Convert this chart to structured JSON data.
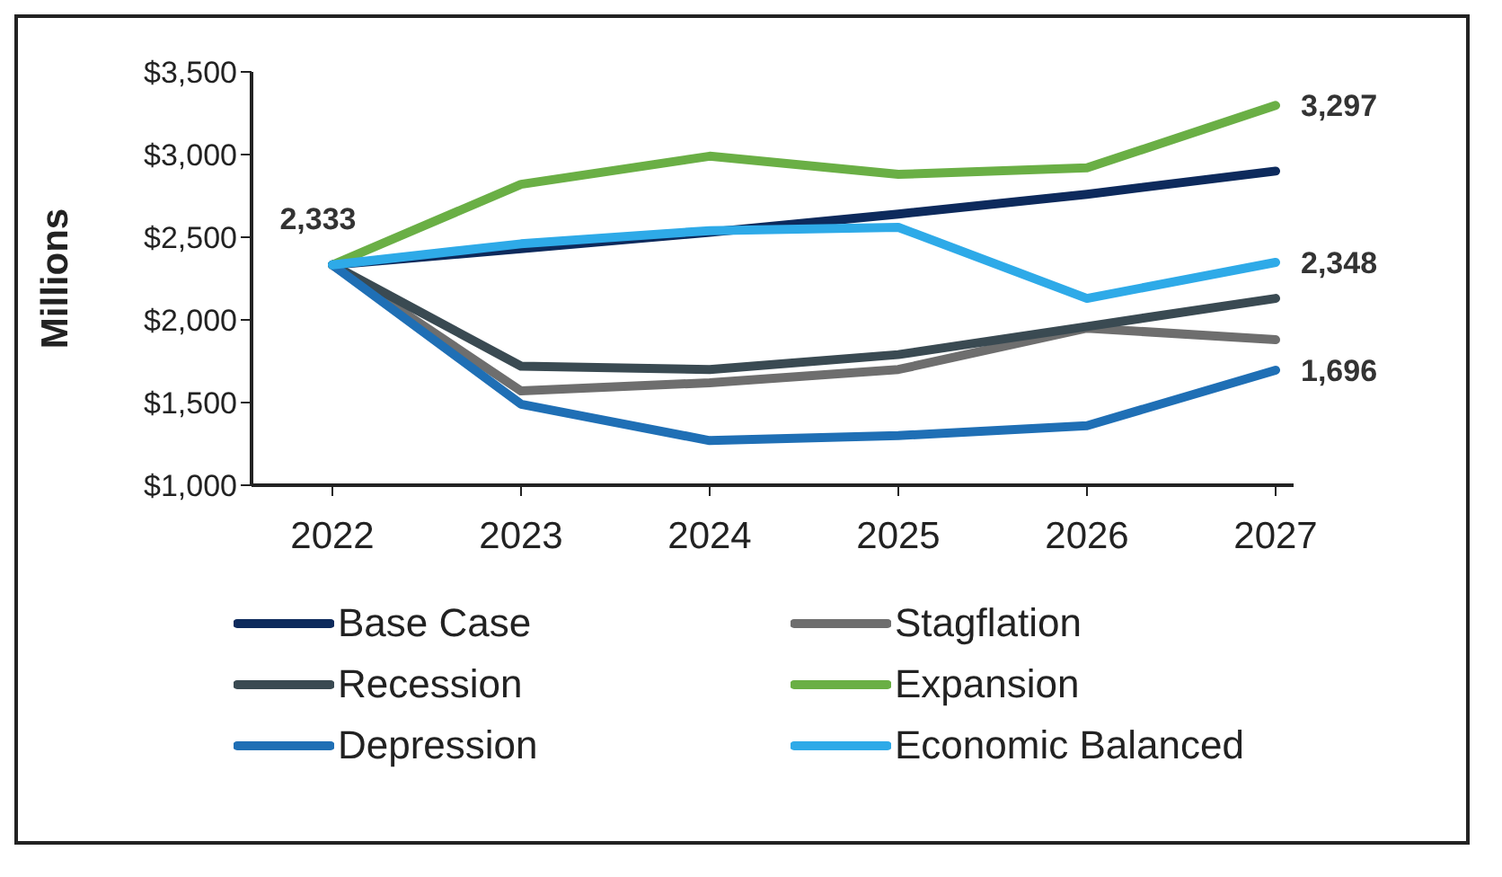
{
  "chart_data": {
    "type": "line",
    "ylabel": "Millions",
    "categories": [
      "2022",
      "2023",
      "2024",
      "2025",
      "2026",
      "2027"
    ],
    "ylim": [
      1000,
      3500
    ],
    "yticks": [
      {
        "value": 1000,
        "label": "$1,000"
      },
      {
        "value": 1500,
        "label": "$1,500"
      },
      {
        "value": 2000,
        "label": "$2,000"
      },
      {
        "value": 2500,
        "label": "$2,500"
      },
      {
        "value": 3000,
        "label": "$3,000"
      },
      {
        "value": 3500,
        "label": "$3,500"
      }
    ],
    "grid": false,
    "legend": "bottom",
    "marker": "none",
    "line_style": "solid",
    "series": [
      {
        "name": "Base Case",
        "color": "#0d2a5c",
        "values": [
          2333,
          2430,
          2530,
          2640,
          2760,
          2900
        ],
        "value_labels": [
          "2,333",
          null,
          null,
          null,
          null,
          null
        ]
      },
      {
        "name": "Stagflation",
        "color": "#6e6e6e",
        "values": [
          2333,
          1570,
          1620,
          1700,
          1950,
          1880
        ]
      },
      {
        "name": "Recession",
        "color": "#3a4a52",
        "values": [
          2333,
          1720,
          1700,
          1790,
          1960,
          2130
        ]
      },
      {
        "name": "Expansion",
        "color": "#6aaf45",
        "values": [
          2333,
          2820,
          2990,
          2880,
          2920,
          3297
        ],
        "value_labels": [
          null,
          null,
          null,
          null,
          null,
          "3,297"
        ]
      },
      {
        "name": "Depression",
        "color": "#1f6fb5",
        "values": [
          2333,
          1490,
          1270,
          1300,
          1360,
          1696
        ],
        "value_labels": [
          null,
          null,
          null,
          null,
          null,
          "1,696"
        ]
      },
      {
        "name": "Economic Balanced",
        "color": "#2eaae8",
        "values": [
          2333,
          2460,
          2540,
          2560,
          2130,
          2348
        ],
        "value_labels": [
          null,
          null,
          null,
          null,
          null,
          "2,348"
        ]
      }
    ]
  }
}
